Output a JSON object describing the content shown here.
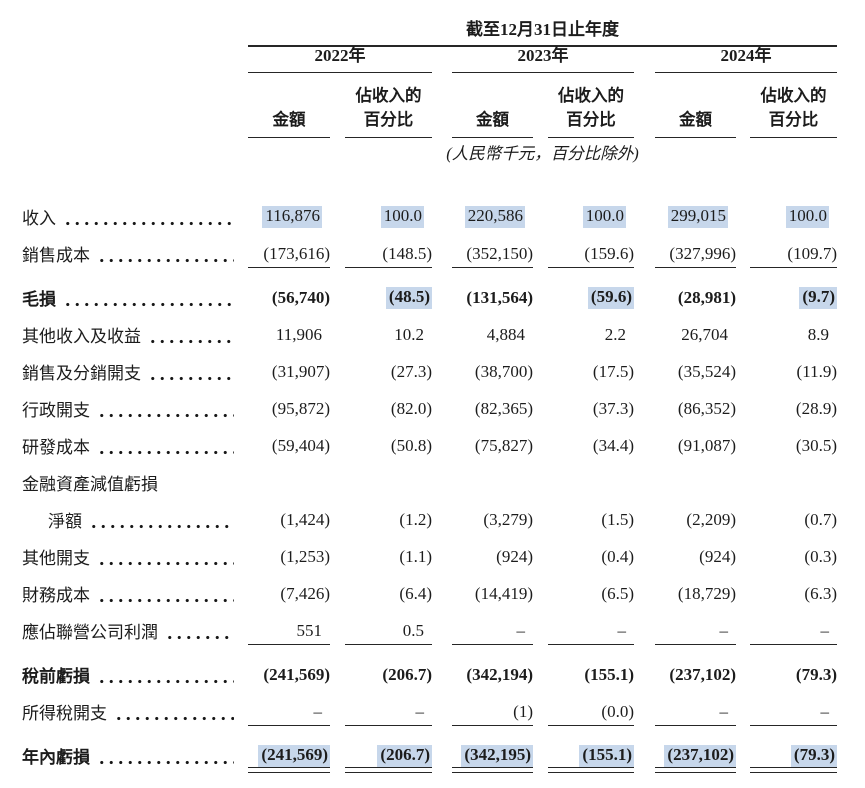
{
  "colors": {
    "highlight": "#c7d7eb",
    "text": "#1c1c1c",
    "rule": "#262626"
  },
  "table": {
    "period_title": "截至12月31日止年度",
    "years": [
      "2022年",
      "2023年",
      "2024年"
    ],
    "col_header": {
      "amount": "金額",
      "pct_line1": "佔收入的",
      "pct_line2": "百分比"
    },
    "note": "(人民幣千元，百分比除外)",
    "rows": [
      {
        "label": "收入",
        "dots": true,
        "values": [
          "116,876",
          "100.0",
          "220,586",
          "100.0",
          "299,015",
          "100.0"
        ],
        "hl": [
          1,
          1,
          1,
          1,
          1,
          1
        ]
      },
      {
        "label": "銷售成本",
        "dots": true,
        "values": [
          "(173,616)",
          "(148.5)",
          "(352,150)",
          "(159.6)",
          "(327,996)",
          "(109.7)"
        ],
        "rule": "single"
      },
      {
        "label": "毛損",
        "bold": true,
        "spaced": true,
        "dots": true,
        "values": [
          "(56,740)",
          "(48.5)",
          "(131,564)",
          "(59.6)",
          "(28,981)",
          "(9.7)"
        ],
        "hl": [
          0,
          1,
          0,
          1,
          0,
          1
        ]
      },
      {
        "label": "其他收入及收益",
        "dots": true,
        "values": [
          "11,906",
          "10.2",
          "4,884",
          "2.2",
          "26,704",
          "8.9"
        ]
      },
      {
        "label": "銷售及分銷開支",
        "dots": true,
        "values": [
          "(31,907)",
          "(27.3)",
          "(38,700)",
          "(17.5)",
          "(35,524)",
          "(11.9)"
        ]
      },
      {
        "label": "行政開支",
        "dots": true,
        "values": [
          "(95,872)",
          "(82.0)",
          "(82,365)",
          "(37.3)",
          "(86,352)",
          "(28.9)"
        ]
      },
      {
        "label": "研發成本",
        "dots": true,
        "values": [
          "(59,404)",
          "(50.8)",
          "(75,827)",
          "(34.4)",
          "(91,087)",
          "(30.5)"
        ]
      },
      {
        "label": "金融資產減值虧損",
        "dots": false,
        "values": [
          null,
          null,
          null,
          null,
          null,
          null
        ]
      },
      {
        "label": "淨額",
        "indent": true,
        "dots": true,
        "values": [
          "(1,424)",
          "(1.2)",
          "(3,279)",
          "(1.5)",
          "(2,209)",
          "(0.7)"
        ]
      },
      {
        "label": "其他開支",
        "dots": true,
        "values": [
          "(1,253)",
          "(1.1)",
          "(924)",
          "(0.4)",
          "(924)",
          "(0.3)"
        ]
      },
      {
        "label": "財務成本",
        "dots": true,
        "values": [
          "(7,426)",
          "(6.4)",
          "(14,419)",
          "(6.5)",
          "(18,729)",
          "(6.3)"
        ]
      },
      {
        "label": "應佔聯營公司利潤",
        "dots": true,
        "values": [
          "551",
          "0.5",
          "–",
          "–",
          "–",
          "–"
        ],
        "rule": "single"
      },
      {
        "label": "稅前虧損",
        "bold": true,
        "spaced": true,
        "dots": true,
        "values": [
          "(241,569)",
          "(206.7)",
          "(342,194)",
          "(155.1)",
          "(237,102)",
          "(79.3)"
        ]
      },
      {
        "label": "所得稅開支",
        "dots": true,
        "values": [
          "–",
          "–",
          "(1)",
          "(0.0)",
          "–",
          "–"
        ],
        "rule": "single"
      },
      {
        "label": "年內虧損",
        "bold": true,
        "spaced": true,
        "dots": true,
        "values": [
          "(241,569)",
          "(206.7)",
          "(342,195)",
          "(155.1)",
          "(237,102)",
          "(79.3)"
        ],
        "hl": [
          1,
          1,
          1,
          1,
          1,
          1
        ],
        "rule": "double"
      }
    ]
  }
}
